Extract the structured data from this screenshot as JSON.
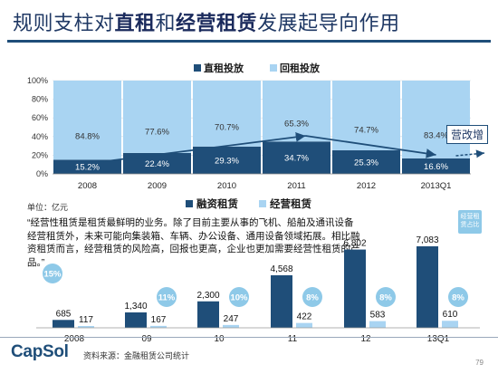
{
  "page": {
    "title_parts": [
      "规则支柱对",
      "直租",
      "和",
      "经营租赁",
      "发展起导向作用"
    ],
    "callout": "营改增",
    "unit": "单位：亿元",
    "quote": "“经营性租赁是租赁最鲜明的业务。除了目前主要从事的飞机、船舶及通讯设备经营租赁外，未来可能向集装箱、车辆、办公设备、通用设备领域拓展。相比融资租赁而言，经营租赁的风险高，回报也更高，企业也更加需要经营性租赁的产品。”",
    "side_note": "经营租赁占比",
    "logo": "CapSol",
    "source": "资料来源：金融租赁公司统计",
    "page_number": "79"
  },
  "colors": {
    "dark_blue": "#1f4e79",
    "light_blue": "#a9d4f2",
    "title_blue": "#1f3864",
    "bubble_blue": "#8ec9e8"
  },
  "chart_data": [
    {
      "type": "bar",
      "stacked": true,
      "percent": true,
      "categories": [
        "2008",
        "2009",
        "2010",
        "2011",
        "2012",
        "2013Q1"
      ],
      "series": [
        {
          "name": "直租投放",
          "values": [
            15.2,
            22.4,
            29.3,
            34.7,
            25.3,
            16.6
          ],
          "labels": [
            "15.2%",
            "22.4%",
            "29.3%",
            "34.7%",
            "25.3%",
            "16.6%"
          ]
        },
        {
          "name": "回租投放",
          "values": [
            84.8,
            77.6,
            70.7,
            65.3,
            74.7,
            83.4
          ],
          "labels": [
            "84.8%",
            "77.6%",
            "70.7%",
            "65.3%",
            "74.7%",
            "83.4%"
          ]
        }
      ],
      "ylim": [
        0,
        100
      ],
      "yticks": [
        "0%",
        "20%",
        "40%",
        "60%",
        "80%",
        "100%"
      ],
      "legend": "top"
    },
    {
      "type": "bar",
      "categories": [
        "2008",
        "09",
        "10",
        "11",
        "12",
        "13Q1"
      ],
      "series": [
        {
          "name": "融资租赁",
          "values": [
            685,
            1340,
            2300,
            4568,
            6802,
            7083
          ],
          "labels": [
            "685",
            "1,340",
            "2,300",
            "4,568",
            "6,802",
            "7,083"
          ]
        },
        {
          "name": "经营租赁",
          "values": [
            117,
            167,
            247,
            422,
            583,
            610
          ],
          "labels": [
            "117",
            "167",
            "247",
            "422",
            "583",
            "610"
          ]
        }
      ],
      "share_labels": [
        "15%",
        "11%",
        "10%",
        "8%",
        "8%",
        "8%"
      ],
      "legend": "top"
    }
  ]
}
